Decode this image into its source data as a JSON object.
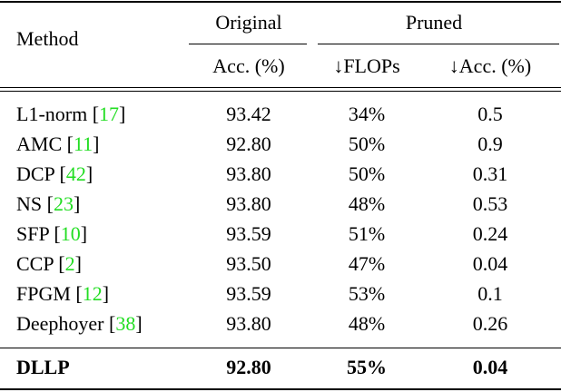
{
  "table": {
    "header": {
      "method": "Method",
      "original": "Original",
      "pruned": "Pruned",
      "columns": [
        "Acc. (%)",
        "↓FLOPs",
        "↓Acc. (%)"
      ]
    },
    "citation_brackets": [
      "[",
      "]"
    ],
    "rows": [
      {
        "method": "L1-norm",
        "cite": "17",
        "cells": [
          "93.42",
          "34%",
          "0.5"
        ]
      },
      {
        "method": "AMC",
        "cite": "11",
        "cells": [
          "92.80",
          "50%",
          "0.9"
        ]
      },
      {
        "method": "DCP",
        "cite": "42",
        "cells": [
          "93.80",
          "50%",
          "0.31"
        ]
      },
      {
        "method": "NS",
        "cite": "23",
        "cells": [
          "93.80",
          "48%",
          "0.53"
        ]
      },
      {
        "method": "SFP",
        "cite": "10",
        "cells": [
          "93.59",
          "51%",
          "0.24"
        ]
      },
      {
        "method": "CCP",
        "cite": "2",
        "cells": [
          "93.50",
          "47%",
          "0.04"
        ]
      },
      {
        "method": "FPGM",
        "cite": "12",
        "cells": [
          "93.59",
          "53%",
          "0.1"
        ]
      },
      {
        "method": "Deephoyer",
        "cite": "38",
        "cells": [
          "93.80",
          "48%",
          "0.26"
        ]
      }
    ],
    "ours": {
      "method": "DLLP",
      "cells": [
        "92.80",
        "55%",
        "0.04"
      ]
    }
  }
}
